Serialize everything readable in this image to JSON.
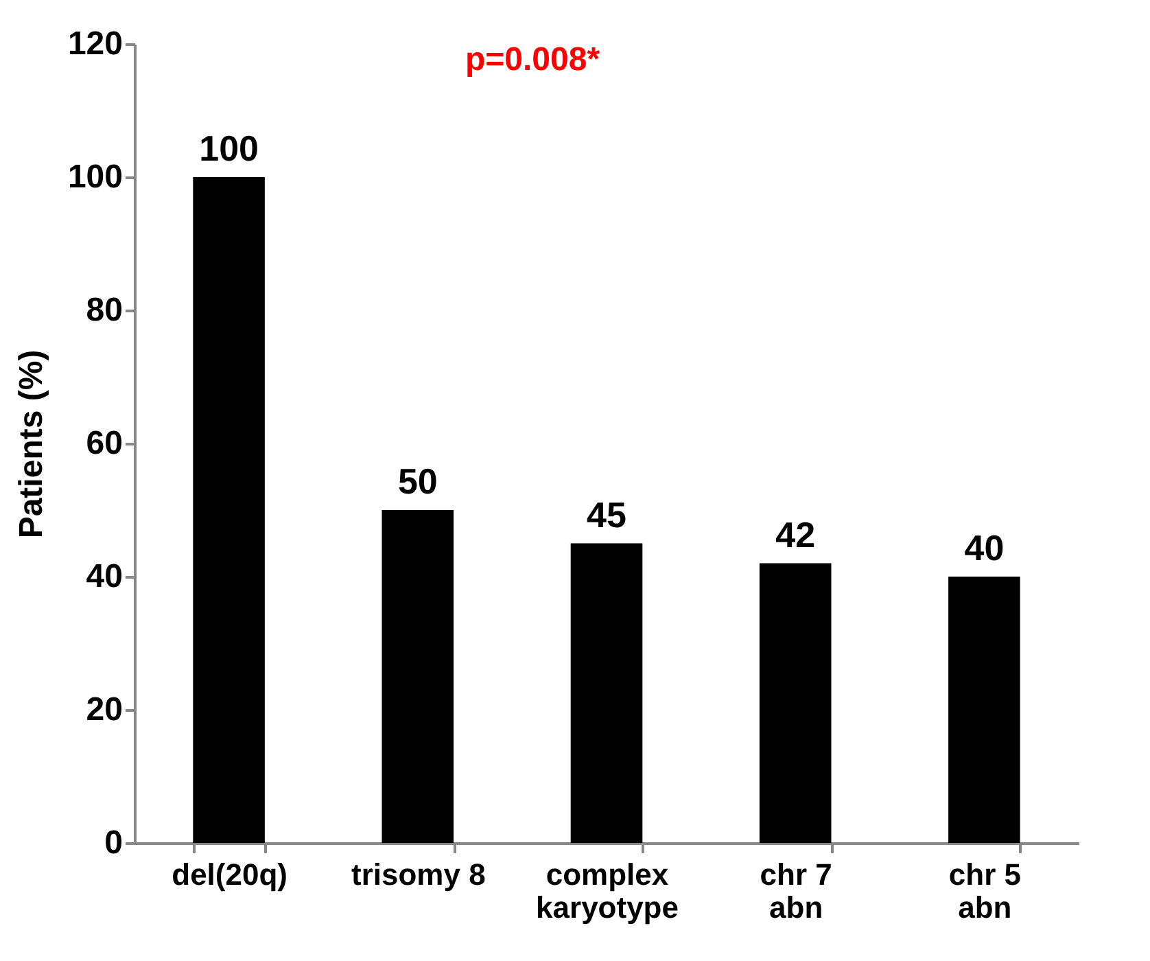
{
  "chart_data": {
    "type": "bar",
    "ylabel": "Patients (%)",
    "categories": [
      "del(20q)",
      "trisomy 8",
      "complex\nkaryotype",
      "chr 7\nabn",
      "chr 5\nabn"
    ],
    "values": [
      100,
      50,
      45,
      42,
      40
    ],
    "color": "#000000",
    "ylim": [
      0,
      120
    ],
    "yticks": [
      0,
      20,
      40,
      60,
      80,
      100,
      120
    ],
    "grid": false,
    "data_labels": true,
    "annotations": [
      "p=0.008*"
    ]
  }
}
